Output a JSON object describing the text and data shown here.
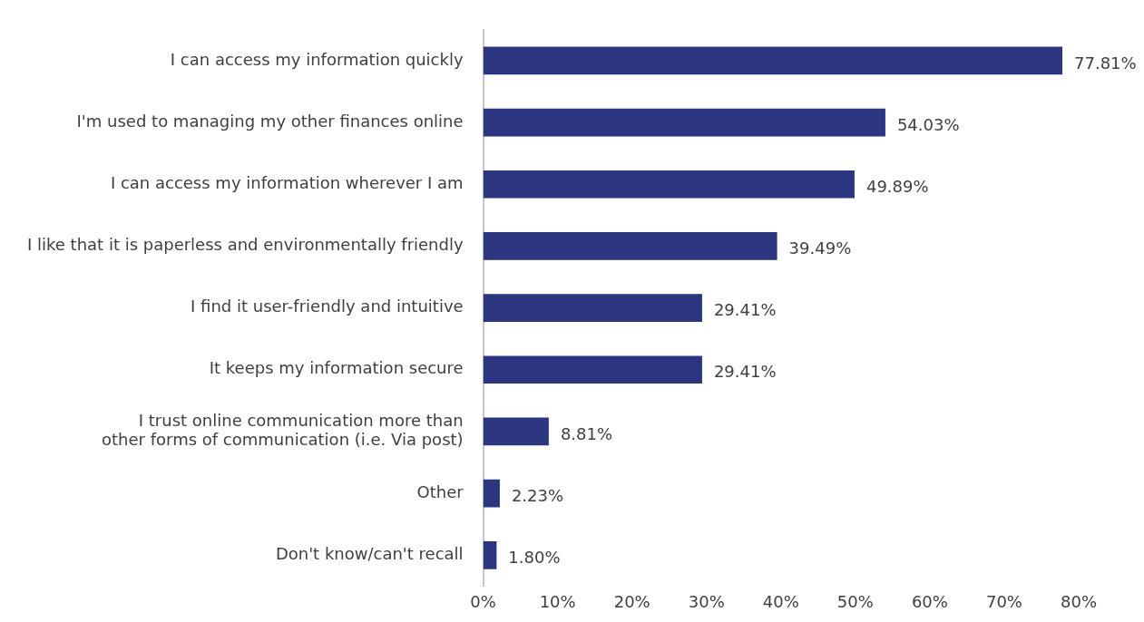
{
  "chart_data": {
    "type": "bar",
    "orientation": "horizontal",
    "categories": [
      "I can access my information quickly",
      "I'm used to managing my other finances online",
      "I can access my information wherever I am",
      "I like that it is paperless and environmentally friendly",
      "I find it user-friendly and intuitive",
      "It keeps my information secure",
      "I trust online communication more than other forms of communication (i.e. Via post)",
      "Other",
      "Don't know/can't recall"
    ],
    "values": [
      77.81,
      54.03,
      49.89,
      39.49,
      29.41,
      29.41,
      8.81,
      2.23,
      1.8
    ],
    "value_labels": [
      "77.81%",
      "54.03%",
      "49.89%",
      "39.49%",
      "29.41%",
      "29.41%",
      "8.81%",
      "2.23%",
      "1.80%"
    ],
    "color": "#2b3580",
    "xlim": [
      0,
      80
    ],
    "xticks": [
      {
        "value": 0,
        "label": "0%"
      },
      {
        "value": 10,
        "label": "10%"
      },
      {
        "value": 20,
        "label": "20%"
      },
      {
        "value": 30,
        "label": "30%"
      },
      {
        "value": 40,
        "label": "40%"
      },
      {
        "value": 50,
        "label": "50%"
      },
      {
        "value": 60,
        "label": "60%"
      },
      {
        "value": 70,
        "label": "70%"
      },
      {
        "value": 80,
        "label": "80%"
      }
    ],
    "grid": false,
    "legend": false
  }
}
